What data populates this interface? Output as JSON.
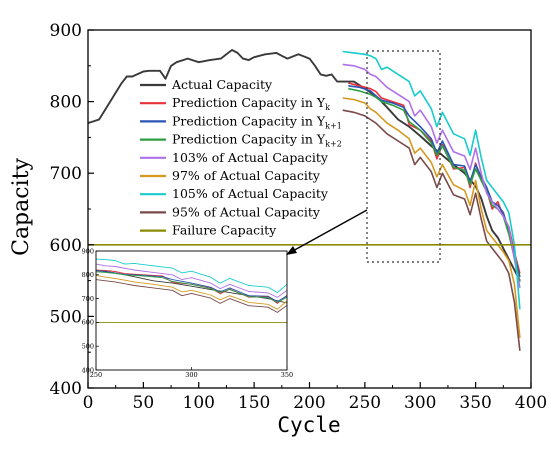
{
  "chart_data": {
    "type": "line",
    "xlabel": "Cycle",
    "ylabel": "Capacity",
    "xlim": [
      0,
      400
    ],
    "ylim": [
      400,
      900
    ],
    "x_ticks": [
      "0",
      "50",
      "100",
      "150",
      "200",
      "250",
      "300",
      "350",
      "400"
    ],
    "y_ticks": [
      "400",
      "500",
      "600",
      "700",
      "800",
      "900"
    ],
    "legend_position": "upper-left",
    "series": [
      {
        "name": "Actual Capacity",
        "color": "#3a3a3a",
        "x": [
          0,
          10,
          20,
          30,
          35,
          40,
          50,
          55,
          65,
          70,
          75,
          80,
          90,
          100,
          110,
          120,
          125,
          130,
          135,
          140,
          145,
          150,
          160,
          170,
          175,
          180,
          190,
          200,
          205,
          210,
          215,
          220,
          225,
          230,
          240,
          250,
          260,
          270,
          280,
          290,
          300,
          310,
          320,
          330,
          340,
          350,
          355,
          360,
          365,
          370,
          375,
          380,
          385,
          390
        ],
        "y": [
          770,
          775,
          800,
          825,
          835,
          835,
          842,
          843,
          843,
          832,
          850,
          855,
          860,
          855,
          858,
          860,
          866,
          872,
          868,
          860,
          858,
          862,
          866,
          868,
          864,
          860,
          866,
          860,
          850,
          838,
          836,
          838,
          828,
          828,
          828,
          818,
          808,
          792,
          775,
          765,
          752,
          738,
          725,
          712,
          700,
          682,
          665,
          640,
          620,
          610,
          595,
          580,
          565,
          550
        ]
      },
      {
        "name": "Prediction Capacity in Yk",
        "color": "#e8303a",
        "x": [
          235,
          245,
          255,
          260,
          265,
          275,
          285,
          290,
          300,
          310,
          315,
          320,
          330,
          340,
          345,
          350,
          355,
          360,
          365,
          370,
          375,
          380,
          385,
          390
        ],
        "y": [
          826,
          822,
          818,
          814,
          805,
          800,
          795,
          768,
          760,
          745,
          720,
          740,
          706,
          708,
          680,
          714,
          690,
          676,
          650,
          660,
          640,
          625,
          590,
          560
        ]
      },
      {
        "name": "Prediction Capacity in Yk+1",
        "color": "#2a55b4",
        "x": [
          235,
          245,
          255,
          260,
          265,
          275,
          285,
          290,
          300,
          310,
          315,
          320,
          330,
          340,
          345,
          350,
          355,
          360,
          365,
          370,
          375,
          380,
          385,
          390
        ],
        "y": [
          822,
          820,
          815,
          808,
          802,
          798,
          792,
          780,
          765,
          748,
          728,
          745,
          712,
          710,
          688,
          712,
          695,
          680,
          660,
          655,
          645,
          620,
          585,
          555
        ]
      },
      {
        "name": "Prediction Capacity in Yk+2",
        "color": "#2e9e44",
        "x": [
          235,
          245,
          255,
          260,
          265,
          275,
          285,
          290,
          300,
          310,
          315,
          320,
          330,
          340,
          345,
          350,
          355,
          360,
          365,
          370,
          375,
          380,
          385,
          390
        ],
        "y": [
          818,
          815,
          810,
          806,
          800,
          795,
          788,
          772,
          760,
          742,
          725,
          738,
          708,
          704,
          684,
          706,
          690,
          674,
          655,
          650,
          640,
          615,
          582,
          548
        ]
      },
      {
        "name": "103% of Actual Capacity",
        "color": "#b070e8",
        "x": [
          230,
          240,
          250,
          255,
          260,
          270,
          280,
          290,
          295,
          300,
          310,
          315,
          320,
          330,
          340,
          345,
          350,
          355,
          360,
          365,
          370,
          375,
          380,
          385,
          390
        ],
        "y": [
          852,
          850,
          845,
          838,
          835,
          820,
          810,
          800,
          780,
          788,
          765,
          742,
          760,
          730,
          724,
          705,
          735,
          700,
          672,
          660,
          650,
          640,
          625,
          580,
          540
        ]
      },
      {
        "name": "97% of Actual Capacity",
        "color": "#d49a20",
        "x": [
          230,
          240,
          250,
          255,
          260,
          270,
          280,
          290,
          295,
          300,
          310,
          315,
          320,
          330,
          340,
          345,
          350,
          355,
          360,
          365,
          370,
          375,
          380,
          385,
          390
        ],
        "y": [
          805,
          803,
          798,
          790,
          785,
          770,
          760,
          748,
          728,
          735,
          715,
          695,
          712,
          684,
          676,
          655,
          690,
          650,
          620,
          610,
          600,
          590,
          578,
          545,
          470
        ]
      },
      {
        "name": "105% of Actual Capacity",
        "color": "#18cccc",
        "x": [
          230,
          240,
          250,
          255,
          260,
          265,
          270,
          280,
          290,
          295,
          300,
          310,
          315,
          320,
          330,
          340,
          345,
          350,
          355,
          360,
          365,
          370,
          375,
          380,
          385,
          390
        ],
        "y": [
          870,
          868,
          866,
          864,
          860,
          845,
          848,
          838,
          828,
          808,
          815,
          790,
          765,
          785,
          755,
          748,
          725,
          760,
          722,
          690,
          680,
          670,
          660,
          645,
          600,
          510
        ]
      },
      {
        "name": "95% of Actual Capacity",
        "color": "#7a4a4a",
        "x": [
          230,
          240,
          250,
          255,
          260,
          270,
          280,
          290,
          295,
          300,
          310,
          315,
          320,
          330,
          340,
          345,
          350,
          355,
          360,
          365,
          370,
          375,
          380,
          385,
          390
        ],
        "y": [
          788,
          785,
          780,
          775,
          770,
          755,
          745,
          735,
          712,
          722,
          702,
          680,
          700,
          670,
          664,
          642,
          672,
          636,
          605,
          595,
          585,
          575,
          560,
          520,
          452
        ]
      },
      {
        "name": "Failure Capacity",
        "color": "#8c8a00",
        "x": [
          0,
          400
        ],
        "y": [
          600,
          600
        ]
      }
    ],
    "inset": {
      "xlim": [
        250,
        350
      ],
      "ylim": [
        400,
        900
      ],
      "x_ticks": [
        "250",
        "300",
        "350"
      ],
      "y_ticks": [
        "400",
        "500",
        "600",
        "700",
        "800",
        "900"
      ]
    }
  }
}
